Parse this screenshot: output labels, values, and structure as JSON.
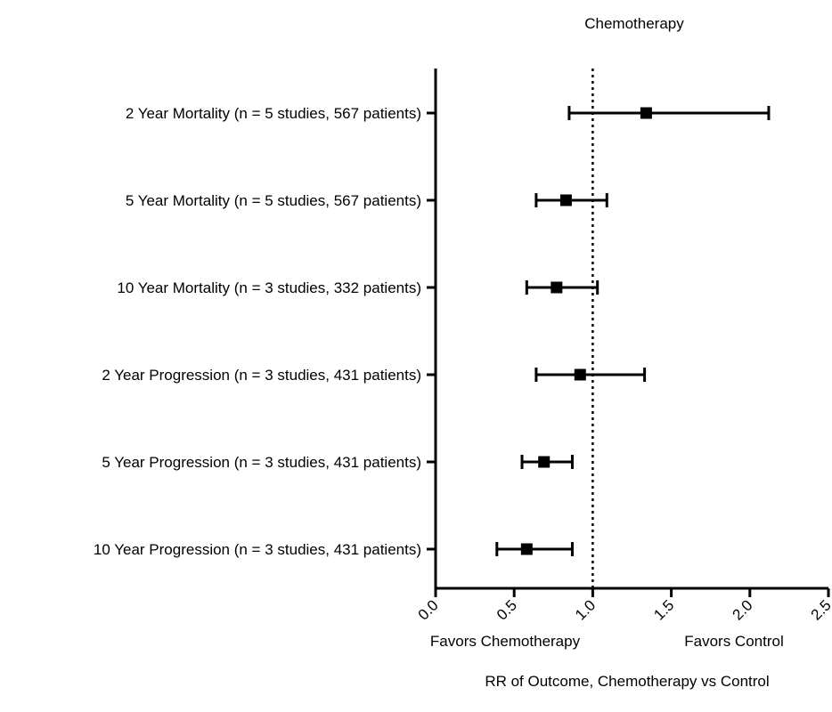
{
  "chart_data": {
    "type": "forest",
    "title": "Chemotherapy",
    "xlabel": "RR of Outcome, Chemotherapy vs Control",
    "favors_left": "Favors Chemotherapy",
    "favors_right": "Favors Control",
    "xlim": [
      0.0,
      2.5
    ],
    "xticks": [
      "0.0",
      "0.5",
      "1.0",
      "1.5",
      "2.0",
      "2.5"
    ],
    "reference_line": 1.0,
    "rows": [
      {
        "label": "2 Year Mortality (n = 5 studies, 567 patients)",
        "estimate": 1.34,
        "lower": 0.85,
        "upper": 2.12
      },
      {
        "label": "5 Year Mortality (n = 5 studies, 567 patients)",
        "estimate": 0.83,
        "lower": 0.64,
        "upper": 1.09
      },
      {
        "label": "10 Year Mortality (n = 3 studies, 332 patients)",
        "estimate": 0.77,
        "lower": 0.58,
        "upper": 1.03
      },
      {
        "label": "2 Year Progression (n = 3 studies, 431 patients)",
        "estimate": 0.92,
        "lower": 0.64,
        "upper": 1.33
      },
      {
        "label": "5 Year Progression (n = 3 studies, 431 patients)",
        "estimate": 0.69,
        "lower": 0.55,
        "upper": 0.87
      },
      {
        "label": "10 Year Progression (n = 3 studies, 431 patients)",
        "estimate": 0.58,
        "lower": 0.39,
        "upper": 0.87
      }
    ]
  }
}
